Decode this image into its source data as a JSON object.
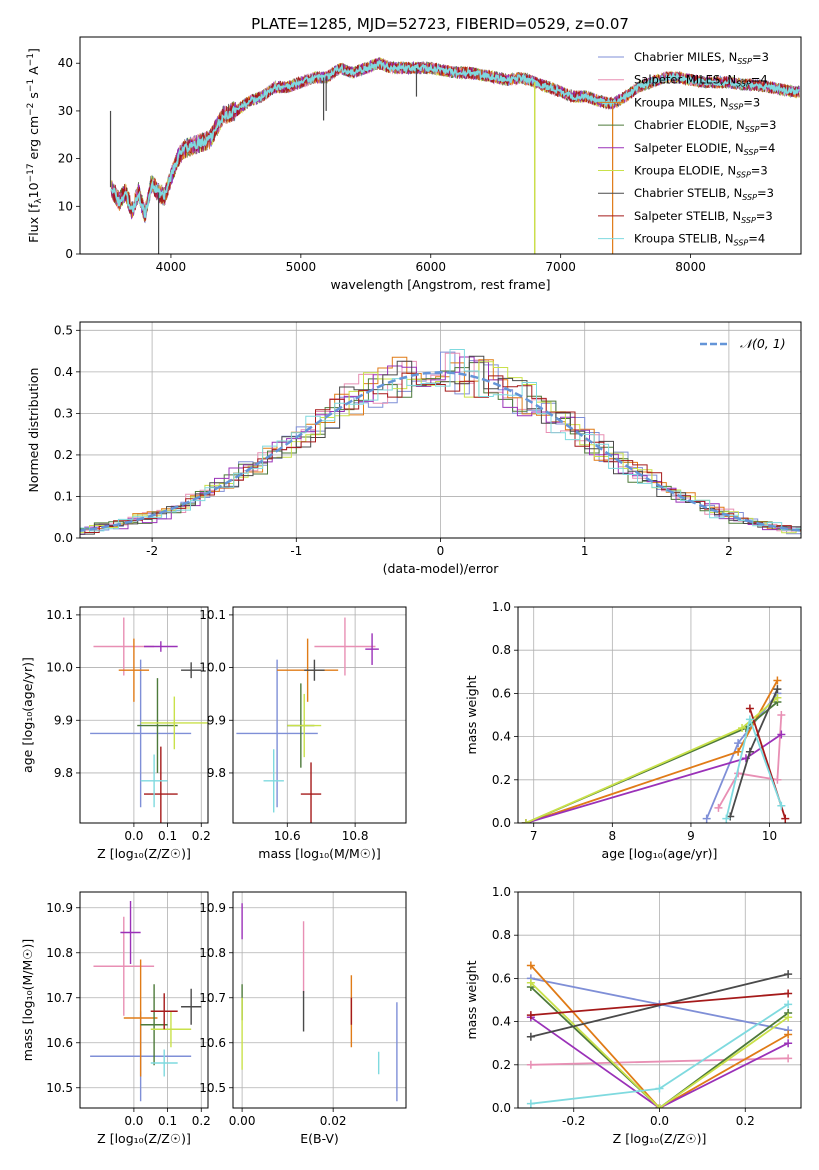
{
  "figure": {
    "title": "PLATE=1285, MJD=52723, FIBERID=0529, z=0.07"
  },
  "models": [
    {
      "name": "Chabrier MILES",
      "nssp": "3",
      "color": "#7f8fd7"
    },
    {
      "name": "Salpeter MILES",
      "nssp": "4",
      "color": "#e88fb4"
    },
    {
      "name": "Kroupa MILES",
      "nssp": "3",
      "color": "#e07b17"
    },
    {
      "name": "Chabrier ELODIE",
      "nssp": "3",
      "color": "#4d7a3a"
    },
    {
      "name": "Salpeter ELODIE",
      "nssp": "4",
      "color": "#9a31b8"
    },
    {
      "name": "Kroupa ELODIE",
      "nssp": "3",
      "color": "#c9e14a"
    },
    {
      "name": "Chabrier STELIB",
      "nssp": "3",
      "color": "#4a4a4a"
    },
    {
      "name": "Salpeter STELIB",
      "nssp": "3",
      "color": "#a51a1a"
    },
    {
      "name": "Kroupa STELIB",
      "nssp": "4",
      "color": "#7fdadf"
    }
  ],
  "chart_data": [
    {
      "id": "spectrum",
      "type": "line",
      "xlabel": "wavelength [Angstrom, rest frame]",
      "xlim": [
        3300,
        8850
      ],
      "ylim": [
        0,
        45.5
      ],
      "xticks": [
        4000,
        5000,
        6000,
        7000,
        8000
      ],
      "yticks": [
        0,
        10,
        20,
        30,
        40
      ],
      "grid": false,
      "legend_position": "top-right",
      "anchors": [
        [
          3540,
          14
        ],
        [
          3600,
          11
        ],
        [
          3650,
          13
        ],
        [
          3700,
          9
        ],
        [
          3750,
          13
        ],
        [
          3800,
          8
        ],
        [
          3850,
          15
        ],
        [
          3900,
          13
        ],
        [
          3950,
          12
        ],
        [
          4000,
          16
        ],
        [
          4050,
          20
        ],
        [
          4100,
          22
        ],
        [
          4200,
          23
        ],
        [
          4300,
          24
        ],
        [
          4400,
          29
        ],
        [
          4500,
          30
        ],
        [
          4600,
          32
        ],
        [
          4700,
          33
        ],
        [
          4800,
          35
        ],
        [
          4900,
          35
        ],
        [
          5000,
          36
        ],
        [
          5100,
          37
        ],
        [
          5200,
          37
        ],
        [
          5300,
          39
        ],
        [
          5400,
          38
        ],
        [
          5500,
          39
        ],
        [
          5600,
          40
        ],
        [
          5700,
          39
        ],
        [
          5800,
          39
        ],
        [
          5900,
          39
        ],
        [
          6000,
          39
        ],
        [
          6100,
          38.5
        ],
        [
          6200,
          38
        ],
        [
          6300,
          38
        ],
        [
          6400,
          37.5
        ],
        [
          6500,
          37
        ],
        [
          6600,
          36.5
        ],
        [
          6700,
          37
        ],
        [
          6800,
          36
        ],
        [
          6900,
          35
        ],
        [
          7000,
          34
        ],
        [
          7100,
          33
        ],
        [
          7200,
          33
        ],
        [
          7300,
          32
        ],
        [
          7400,
          31.5
        ],
        [
          7500,
          33
        ],
        [
          7600,
          35
        ],
        [
          7700,
          36
        ],
        [
          7800,
          37
        ],
        [
          7900,
          37
        ],
        [
          8000,
          36.5
        ],
        [
          8100,
          36
        ],
        [
          8200,
          36
        ],
        [
          8300,
          36
        ],
        [
          8400,
          35.5
        ],
        [
          8500,
          35.5
        ],
        [
          8600,
          35
        ],
        [
          8700,
          34.5
        ],
        [
          8800,
          34
        ]
      ],
      "features": [
        {
          "x": 3535,
          "y": 30,
          "type": "spike"
        },
        {
          "x": 3905,
          "y": 0,
          "type": "dip"
        },
        {
          "x": 5175,
          "y": 28,
          "type": "dip"
        },
        {
          "x": 5195,
          "y": 30,
          "type": "dip"
        },
        {
          "x": 5890,
          "y": 33,
          "type": "dip"
        },
        {
          "x": 6800,
          "y": 0,
          "type": "dip"
        },
        {
          "x": 7400,
          "y": 0,
          "type": "dip"
        }
      ]
    },
    {
      "id": "residuals",
      "type": "step-histogram",
      "ylabel": "Normed distribution",
      "xlabel": "(data-model)/error",
      "xlim": [
        -2.5,
        2.5
      ],
      "ylim": [
        0,
        0.52
      ],
      "xticks": [
        -2,
        -1,
        0,
        1,
        2
      ],
      "yticks": [
        0.0,
        0.1,
        0.2,
        0.3,
        0.4,
        0.5
      ],
      "grid": true,
      "bin_width": 0.1,
      "reference": {
        "name": "𝒩(0, 1)",
        "mean": 0,
        "sigma": 1,
        "color": "#6495d8"
      },
      "legend_position": "top-right"
    },
    {
      "id": "z-vs-age",
      "type": "errorbar",
      "xlabel": "Z [log₁₀(Z/Z☉)]",
      "ylabel": "age  [log₁₀(age/yr)]",
      "xlim": [
        -0.16,
        0.22
      ],
      "ylim": [
        9.705,
        10.115
      ],
      "xticks": [
        0.0,
        0.1,
        0.2
      ],
      "yticks": [
        9.8,
        9.9,
        10.0,
        10.1
      ],
      "grid": true,
      "points": [
        {
          "model": 0,
          "x": 0.02,
          "y": 9.875,
          "xerr": 0.15,
          "yerr": 0.14
        },
        {
          "model": 1,
          "x": -0.03,
          "y": 10.04,
          "xerr": 0.09,
          "yerr": 0.055
        },
        {
          "model": 2,
          "x": 0.0,
          "y": 9.995,
          "xerr": 0.045,
          "yerr": 0.06
        },
        {
          "model": 3,
          "x": 0.07,
          "y": 9.89,
          "xerr": 0.06,
          "yerr": 0.09
        },
        {
          "model": 4,
          "x": 0.08,
          "y": 10.04,
          "xerr": 0.05,
          "yerr": 0.01
        },
        {
          "model": 5,
          "x": 0.12,
          "y": 9.895,
          "xerr": 0.1,
          "yerr": 0.05
        },
        {
          "model": 6,
          "x": 0.17,
          "y": 9.995,
          "xerr": 0.03,
          "yerr": 0.015
        },
        {
          "model": 7,
          "x": 0.08,
          "y": 9.76,
          "xerr": 0.05,
          "yerr": 0.09
        },
        {
          "model": 8,
          "x": 0.06,
          "y": 9.785,
          "xerr": 0.04,
          "yerr": 0.05
        }
      ]
    },
    {
      "id": "mass-vs-age",
      "type": "errorbar",
      "xlabel": "mass [log₁₀(M/M☉)]",
      "ylabel": "",
      "xlim": [
        10.44,
        10.95
      ],
      "ylim": [
        9.705,
        10.115
      ],
      "xticks": [
        10.6,
        10.8
      ],
      "yticks": [
        9.8,
        9.9,
        10.0,
        10.1
      ],
      "grid": true,
      "points": [
        {
          "model": 0,
          "x": 10.57,
          "y": 9.875,
          "xerr": 0.12,
          "yerr": 0.14
        },
        {
          "model": 1,
          "x": 10.77,
          "y": 10.04,
          "xerr": 0.09,
          "yerr": 0.055
        },
        {
          "model": 2,
          "x": 10.66,
          "y": 9.995,
          "xerr": 0.09,
          "yerr": 0.06
        },
        {
          "model": 3,
          "x": 10.64,
          "y": 9.89,
          "xerr": 0.04,
          "yerr": 0.08
        },
        {
          "model": 4,
          "x": 10.85,
          "y": 10.035,
          "xerr": 0.02,
          "yerr": 0.03
        },
        {
          "model": 5,
          "x": 10.65,
          "y": 9.89,
          "xerr": 0.05,
          "yerr": 0.06
        },
        {
          "model": 6,
          "x": 10.68,
          "y": 9.995,
          "xerr": 0.03,
          "yerr": 0.02
        },
        {
          "model": 7,
          "x": 10.67,
          "y": 9.76,
          "xerr": 0.03,
          "yerr": 0.06
        },
        {
          "model": 8,
          "x": 10.56,
          "y": 9.785,
          "xerr": 0.03,
          "yerr": 0.06
        }
      ]
    },
    {
      "id": "age-vs-weight",
      "type": "line",
      "xlabel": "age  [log₁₀(age/yr)]",
      "ylabel": "mass weight",
      "xlim": [
        6.8,
        10.4
      ],
      "ylim": [
        0,
        1.0
      ],
      "xticks": [
        7,
        8,
        9,
        10
      ],
      "yticks": [
        0.0,
        0.2,
        0.4,
        0.6,
        0.8,
        1.0
      ],
      "grid": true,
      "series": [
        {
          "model": 0,
          "x": [
            9.2,
            9.6,
            10.1
          ],
          "y": [
            0.02,
            0.37,
            0.6
          ]
        },
        {
          "model": 1,
          "x": [
            9.35,
            9.6,
            10.1,
            10.15
          ],
          "y": [
            0.07,
            0.23,
            0.2,
            0.5
          ]
        },
        {
          "model": 2,
          "x": [
            6.9,
            9.6,
            10.1
          ],
          "y": [
            0.0,
            0.33,
            0.66
          ]
        },
        {
          "model": 3,
          "x": [
            6.9,
            9.7,
            10.1
          ],
          "y": [
            0.0,
            0.44,
            0.56
          ]
        },
        {
          "model": 4,
          "x": [
            6.9,
            9.7,
            10.15
          ],
          "y": [
            0.0,
            0.3,
            0.41
          ]
        },
        {
          "model": 5,
          "x": [
            6.9,
            9.65,
            10.1
          ],
          "y": [
            0.0,
            0.44,
            0.58
          ]
        },
        {
          "model": 6,
          "x": [
            9.5,
            9.75,
            10.1
          ],
          "y": [
            0.03,
            0.33,
            0.62
          ]
        },
        {
          "model": 7,
          "x": [
            9.75,
            10.2
          ],
          "y": [
            0.53,
            0.02
          ]
        },
        {
          "model": 8,
          "x": [
            9.45,
            9.75,
            10.15
          ],
          "y": [
            0.02,
            0.48,
            0.08
          ]
        }
      ]
    },
    {
      "id": "z-vs-mass",
      "type": "errorbar",
      "xlabel": "Z [log₁₀(Z/Z☉)]",
      "ylabel": "mass [log₁₀(M/M☉)]",
      "xlim": [
        -0.16,
        0.22
      ],
      "ylim": [
        10.455,
        10.935
      ],
      "xticks": [
        0.0,
        0.1,
        0.2
      ],
      "yticks": [
        10.5,
        10.6,
        10.7,
        10.8,
        10.9
      ],
      "grid": true,
      "points": [
        {
          "model": 0,
          "x": 0.02,
          "y": 10.57,
          "xerr": 0.15,
          "yerr": 0.1
        },
        {
          "model": 1,
          "x": -0.03,
          "y": 10.77,
          "xerr": 0.09,
          "yerr": 0.11
        },
        {
          "model": 2,
          "x": 0.02,
          "y": 10.655,
          "xerr": 0.05,
          "yerr": 0.13
        },
        {
          "model": 3,
          "x": 0.06,
          "y": 10.64,
          "xerr": 0.04,
          "yerr": 0.09
        },
        {
          "model": 4,
          "x": -0.01,
          "y": 10.845,
          "xerr": 0.03,
          "yerr": 0.07
        },
        {
          "model": 5,
          "x": 0.11,
          "y": 10.63,
          "xerr": 0.06,
          "yerr": 0.04
        },
        {
          "model": 6,
          "x": 0.17,
          "y": 10.68,
          "xerr": 0.03,
          "yerr": 0.04
        },
        {
          "model": 7,
          "x": 0.09,
          "y": 10.67,
          "xerr": 0.04,
          "yerr": 0.04
        },
        {
          "model": 8,
          "x": 0.09,
          "y": 10.555,
          "xerr": 0.04,
          "yerr": 0.03
        }
      ]
    },
    {
      "id": "ebv-vs-mass",
      "type": "errorbar",
      "xlabel": "E(B-V)",
      "ylabel": "",
      "xlim": [
        -0.002,
        0.036
      ],
      "ylim": [
        10.455,
        10.935
      ],
      "xticks": [
        0.0,
        0.02
      ],
      "yticks": [
        10.5,
        10.6,
        10.7,
        10.8,
        10.9
      ],
      "grid": true,
      "points": [
        {
          "model": 0,
          "x": 0.034,
          "y": 10.58,
          "xerr": 0.0,
          "yerr": 0.11
        },
        {
          "model": 1,
          "x": 0.0135,
          "y": 10.79,
          "xerr": 0.0,
          "yerr": 0.08
        },
        {
          "model": 2,
          "x": 0.024,
          "y": 10.67,
          "xerr": 0.0,
          "yerr": 0.08
        },
        {
          "model": 3,
          "x": 0.0,
          "y": 10.69,
          "xerr": 0.0,
          "yerr": 0.04
        },
        {
          "model": 4,
          "x": 0.0,
          "y": 10.87,
          "xerr": 0.0,
          "yerr": 0.04
        },
        {
          "model": 5,
          "x": 0.0,
          "y": 10.62,
          "xerr": 0.0,
          "yerr": 0.08
        },
        {
          "model": 6,
          "x": 0.0135,
          "y": 10.67,
          "xerr": 0.0,
          "yerr": 0.045
        },
        {
          "model": 7,
          "x": 0.024,
          "y": 10.67,
          "xerr": 0.0,
          "yerr": 0.03
        },
        {
          "model": 8,
          "x": 0.03,
          "y": 10.555,
          "xerr": 0.0,
          "yerr": 0.025
        }
      ]
    },
    {
      "id": "z-vs-weight",
      "type": "line",
      "xlabel": "Z [log₁₀(Z/Z☉)]",
      "ylabel": "mass weight",
      "xlim": [
        -0.33,
        0.33
      ],
      "ylim": [
        0,
        1.0
      ],
      "xticks": [
        -0.2,
        0.0,
        0.2
      ],
      "yticks": [
        0.0,
        0.2,
        0.4,
        0.6,
        0.8,
        1.0
      ],
      "grid": true,
      "series": [
        {
          "model": 0,
          "x": [
            -0.3,
            0.0,
            0.3
          ],
          "y": [
            0.6,
            0.48,
            0.36
          ]
        },
        {
          "model": 1,
          "x": [
            -0.3,
            0.3
          ],
          "y": [
            0.2,
            0.23
          ]
        },
        {
          "model": 2,
          "x": [
            -0.3,
            0.0,
            0.3
          ],
          "y": [
            0.66,
            0.0,
            0.34
          ]
        },
        {
          "model": 3,
          "x": [
            -0.3,
            0.0,
            0.3
          ],
          "y": [
            0.56,
            0.0,
            0.44
          ]
        },
        {
          "model": 4,
          "x": [
            -0.3,
            0.0,
            0.3
          ],
          "y": [
            0.42,
            0.0,
            0.3
          ]
        },
        {
          "model": 5,
          "x": [
            -0.3,
            0.0,
            0.3
          ],
          "y": [
            0.58,
            0.0,
            0.42
          ]
        },
        {
          "model": 6,
          "x": [
            -0.3,
            0.3
          ],
          "y": [
            0.33,
            0.62
          ]
        },
        {
          "model": 7,
          "x": [
            -0.3,
            0.3
          ],
          "y": [
            0.43,
            0.53
          ]
        },
        {
          "model": 8,
          "x": [
            -0.3,
            0.0,
            0.3
          ],
          "y": [
            0.02,
            0.09,
            0.48
          ]
        }
      ]
    }
  ]
}
